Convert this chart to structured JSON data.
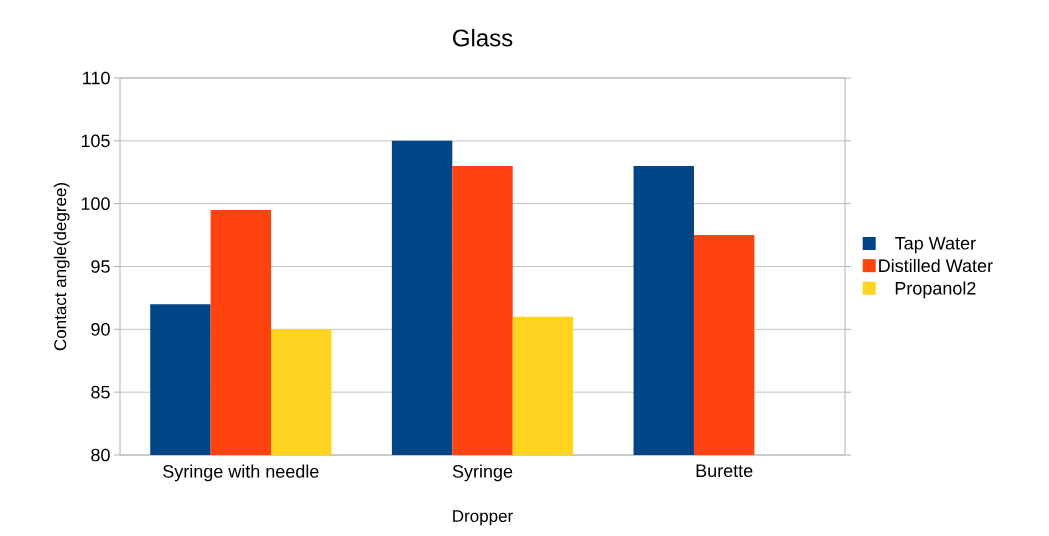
{
  "chart_data": {
    "type": "bar",
    "title": "Glass",
    "xlabel": "Dropper",
    "ylabel": "Contact angle(degree)",
    "categories": [
      "Syringe with needle",
      "Syringe",
      "Burette"
    ],
    "series": [
      {
        "name": "Tap Water",
        "color": "#004586",
        "values": [
          92,
          105,
          103
        ]
      },
      {
        "name": "Distilled Water",
        "color": "#ff420e",
        "values": [
          99.5,
          103,
          97.5
        ]
      },
      {
        "name": "Propanol2",
        "color": "#ffd320",
        "values": [
          90,
          91,
          null
        ]
      }
    ],
    "ylim": [
      80,
      110
    ],
    "yticks": [
      80,
      85,
      90,
      95,
      100,
      105,
      110
    ],
    "grid": "y",
    "legend": "right"
  }
}
